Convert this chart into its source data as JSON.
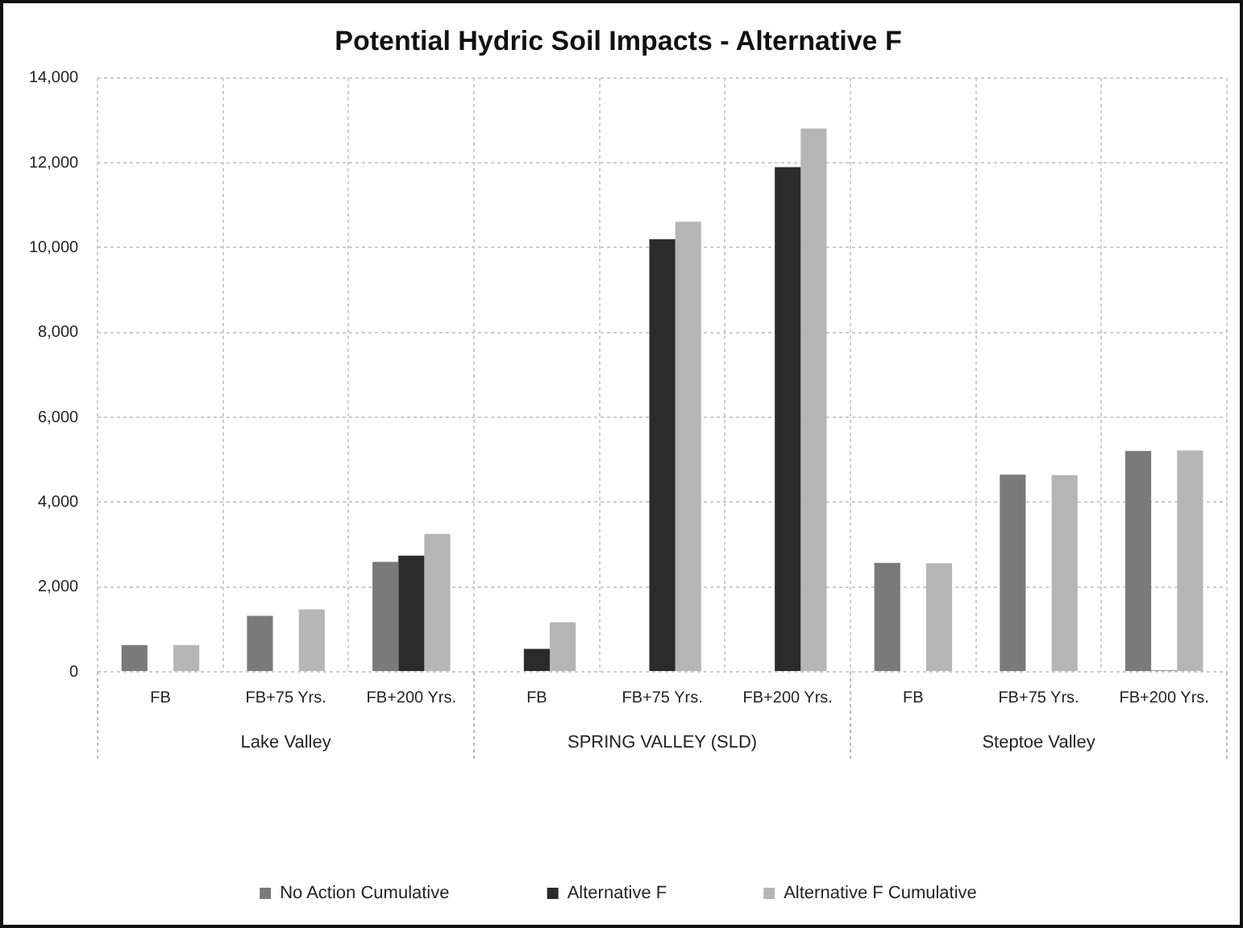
{
  "chart_data": {
    "type": "bar",
    "title": "Potential Hydric Soil Impacts - Alternative F",
    "categories": [
      "FB",
      "FB+75 Yrs.",
      "FB+200 Yrs.",
      "FB",
      "FB+75 Yrs.",
      "FB+200 Yrs.",
      "FB",
      "FB+75 Yrs.",
      "FB+200 Yrs."
    ],
    "series": [
      {
        "name": "No Action Cumulative",
        "color": "#7a7a7a",
        "values": [
          630,
          1320,
          2590,
          null,
          null,
          null,
          2570,
          4650,
          5210
        ]
      },
      {
        "name": "Alternative F",
        "color": "#2b2b2b",
        "values": [
          null,
          null,
          2740,
          540,
          10200,
          11900,
          null,
          null,
          30
        ]
      },
      {
        "name": "Alternative F Cumulative",
        "color": "#b5b5b5",
        "values": [
          630,
          1470,
          3250,
          1170,
          10610,
          12810,
          2560,
          4640,
          5220
        ]
      }
    ],
    "annotations": [
      "Lake Valley",
      "SPRING VALLEY (SLD)",
      "Steptoe Valley"
    ],
    "ylim": [
      0,
      14000
    ],
    "yticks": [
      0,
      {
        "value": 2000,
        "label": "2,000"
      },
      {
        "value": 4000,
        "label": "4,000"
      },
      {
        "value": 6000,
        "label": "6,000"
      },
      {
        "value": 8000,
        "label": "8,000"
      },
      {
        "value": 10000,
        "label": "10,000"
      },
      {
        "value": 12000,
        "label": "12,000"
      },
      {
        "value": 14000,
        "label": "14,000"
      }
    ],
    "grid": true,
    "legend": "bottom"
  }
}
